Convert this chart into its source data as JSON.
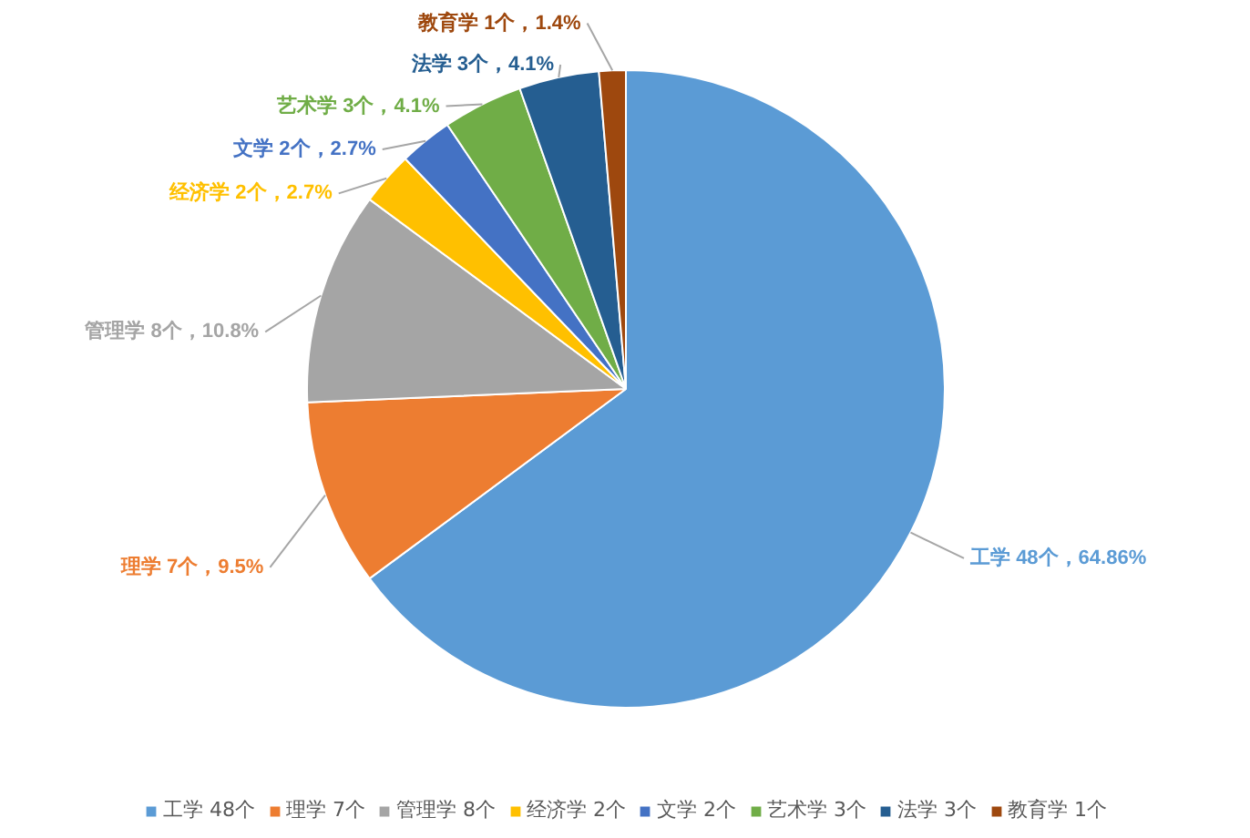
{
  "chart_data": {
    "type": "pie",
    "categories": [
      "工学 48个",
      "理学 7个",
      "管理学 8个",
      "经济学 2个",
      "文学 2个",
      "艺术学 3个",
      "法学 3个",
      "教育学 1个"
    ],
    "values": [
      48,
      7,
      8,
      2,
      2,
      3,
      3,
      1
    ],
    "colors": [
      "#5b9bd5",
      "#ed7d31",
      "#a5a5a5",
      "#ffc000",
      "#4472c4",
      "#70ad47",
      "#255e91",
      "#9e480e"
    ],
    "value_labels": [
      "工学 48个，64.86%",
      "理学 7个，9.5%",
      "管理学 8个，10.8%",
      "经济学 2个，2.7%",
      "文学 2个，2.7%",
      "艺术学 3个，4.1%",
      "法学 3个，4.1%",
      "教育学 1个，1.4%"
    ],
    "legend": "bottom"
  }
}
